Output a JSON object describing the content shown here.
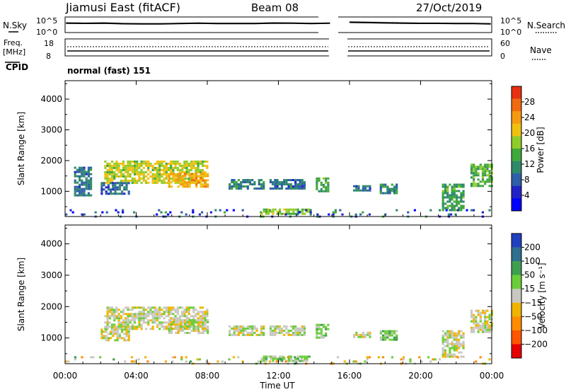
{
  "header": {
    "station": "Jiamusi East (fitACF)",
    "beam": "Beam 08",
    "date": "27/Oct/2019"
  },
  "noise_panel": {
    "left_label": "N.Sky",
    "right_label": "N.Search",
    "y_tick_top": "10^5",
    "y_tick_bottom": "10^0"
  },
  "freq_panel": {
    "left_label_1": "Freq.",
    "left_label_2": "[MHz]",
    "left_tick_top": "18",
    "left_tick_bottom": "8",
    "right_label": "Nave",
    "right_tick_top": "60",
    "right_tick_bottom": "0"
  },
  "cpid": {
    "label": "CPID",
    "mode": "normal (fast) 151"
  },
  "axes": {
    "ylabel": "Slant Range [km]",
    "xlabel": "Time UT",
    "x_ticks": [
      "00:00",
      "04:00",
      "08:00",
      "12:00",
      "16:00",
      "20:00",
      "00:00"
    ],
    "y_ticks": [
      "1000",
      "2000",
      "3000",
      "4000"
    ]
  },
  "colors": {
    "power_scale": [
      "#0000ff",
      "#2222c8",
      "#2e5fa8",
      "#2f8a6a",
      "#41a83c",
      "#8fcc2a",
      "#f0c010",
      "#f59a10",
      "#f06a10",
      "#e63010"
    ],
    "velocity_scale": [
      "#e60000",
      "#ff5500",
      "#ff8c00",
      "#f0b400",
      "#c8c8c0",
      "#6ccd3a",
      "#3f9f4f",
      "#2f6f8f",
      "#2040c0"
    ]
  },
  "chart_data": [
    {
      "type": "heatmap",
      "name": "power",
      "xlabel": "Time UT",
      "ylabel": "Slant Range [km]",
      "xlim": [
        0,
        24
      ],
      "ylim": [
        180,
        4600
      ],
      "colorbar": {
        "label": "Power [dB]",
        "ticks": [
          "4",
          "8",
          "12",
          "16",
          "20",
          "24",
          "28"
        ],
        "range": [
          0,
          30
        ]
      },
      "regions": [
        {
          "t0": 0.5,
          "t1": 1.4,
          "r0": 900,
          "r1": 1800,
          "value": 8
        },
        {
          "t0": 2.2,
          "t1": 8.0,
          "r0": 1300,
          "r1": 2000,
          "value": 18
        },
        {
          "t0": 5.8,
          "t1": 8.0,
          "r0": 1150,
          "r1": 1600,
          "value": 22
        },
        {
          "t0": 2.0,
          "t1": 3.6,
          "r0": 950,
          "r1": 1300,
          "value": 8
        },
        {
          "t0": 9.2,
          "t1": 11.2,
          "r0": 1100,
          "r1": 1400,
          "value": 10
        },
        {
          "t0": 11.5,
          "t1": 13.5,
          "r0": 1100,
          "r1": 1400,
          "value": 8
        },
        {
          "t0": 14.1,
          "t1": 14.8,
          "r0": 1000,
          "r1": 1450,
          "value": 12
        },
        {
          "t0": 11.0,
          "t1": 13.8,
          "r0": 290,
          "r1": 440,
          "value": 16
        },
        {
          "t0": 16.2,
          "t1": 17.2,
          "r0": 1000,
          "r1": 1200,
          "value": 8
        },
        {
          "t0": 17.7,
          "t1": 18.7,
          "r0": 950,
          "r1": 1250,
          "value": 10
        },
        {
          "t0": 21.2,
          "t1": 22.4,
          "r0": 400,
          "r1": 1250,
          "value": 12
        },
        {
          "t0": 22.8,
          "t1": 24.0,
          "r0": 1200,
          "r1": 1900,
          "value": 14
        },
        {
          "t0": 0.0,
          "t1": 24.0,
          "r0": 200,
          "r1": 420,
          "value": 6
        }
      ]
    },
    {
      "type": "heatmap",
      "name": "velocity",
      "xlabel": "Time UT",
      "ylabel": "Slant Range [km]",
      "xlim": [
        0,
        24
      ],
      "ylim": [
        180,
        4600
      ],
      "colorbar": {
        "label": "Velocity [m s⁻¹]",
        "ticks": [
          "200",
          "100",
          "50",
          "15",
          "−15",
          "−50",
          "−100",
          "−200"
        ],
        "range": [
          -250,
          250
        ]
      },
      "regions": [
        {
          "t0": 2.2,
          "t1": 8.0,
          "r0": 1300,
          "r1": 2000,
          "value": 0
        },
        {
          "t0": 5.8,
          "t1": 8.0,
          "r0": 1150,
          "r1": 1600,
          "value": 0
        },
        {
          "t0": 2.0,
          "t1": 3.6,
          "r0": 950,
          "r1": 1300,
          "value": 0
        },
        {
          "t0": 9.2,
          "t1": 11.2,
          "r0": 1100,
          "r1": 1400,
          "value": 0
        },
        {
          "t0": 11.5,
          "t1": 13.5,
          "r0": 1100,
          "r1": 1400,
          "value": 0
        },
        {
          "t0": 14.1,
          "t1": 14.8,
          "r0": 1000,
          "r1": 1450,
          "value": 60
        },
        {
          "t0": 11.0,
          "t1": 13.8,
          "r0": 290,
          "r1": 440,
          "value": 40
        },
        {
          "t0": 16.2,
          "t1": 17.2,
          "r0": 1000,
          "r1": 1200,
          "value": 0
        },
        {
          "t0": 17.7,
          "t1": 18.7,
          "r0": 950,
          "r1": 1250,
          "value": 60
        },
        {
          "t0": 21.2,
          "t1": 22.4,
          "r0": 400,
          "r1": 1250,
          "value": 0
        },
        {
          "t0": 22.8,
          "t1": 24.0,
          "r0": 1200,
          "r1": 1900,
          "value": 0
        },
        {
          "t0": 0.0,
          "t1": 24.0,
          "r0": 200,
          "r1": 420,
          "value": -20
        }
      ]
    }
  ],
  "noise_series": {
    "search": [
      3.2,
      3.1,
      3.2,
      3.0,
      2.9,
      2.9,
      3.0,
      3.1,
      3.0,
      3.0,
      3.0,
      3.2,
      3.1,
      3.0,
      3.1
    ],
    "sky": [
      3.0,
      2.95,
      3.0,
      2.85,
      2.8,
      2.8,
      2.9,
      3.0,
      2.9,
      2.9,
      2.9,
      3.05,
      3.0,
      2.9,
      3.0
    ],
    "search2": [
      3.5,
      3.4,
      3.3,
      3.2,
      3.1,
      3.1,
      3.0,
      3.0,
      2.9
    ],
    "sky2": [
      3.3,
      3.2,
      3.1,
      3.0,
      2.95,
      2.95,
      2.9,
      2.9,
      2.8
    ]
  }
}
